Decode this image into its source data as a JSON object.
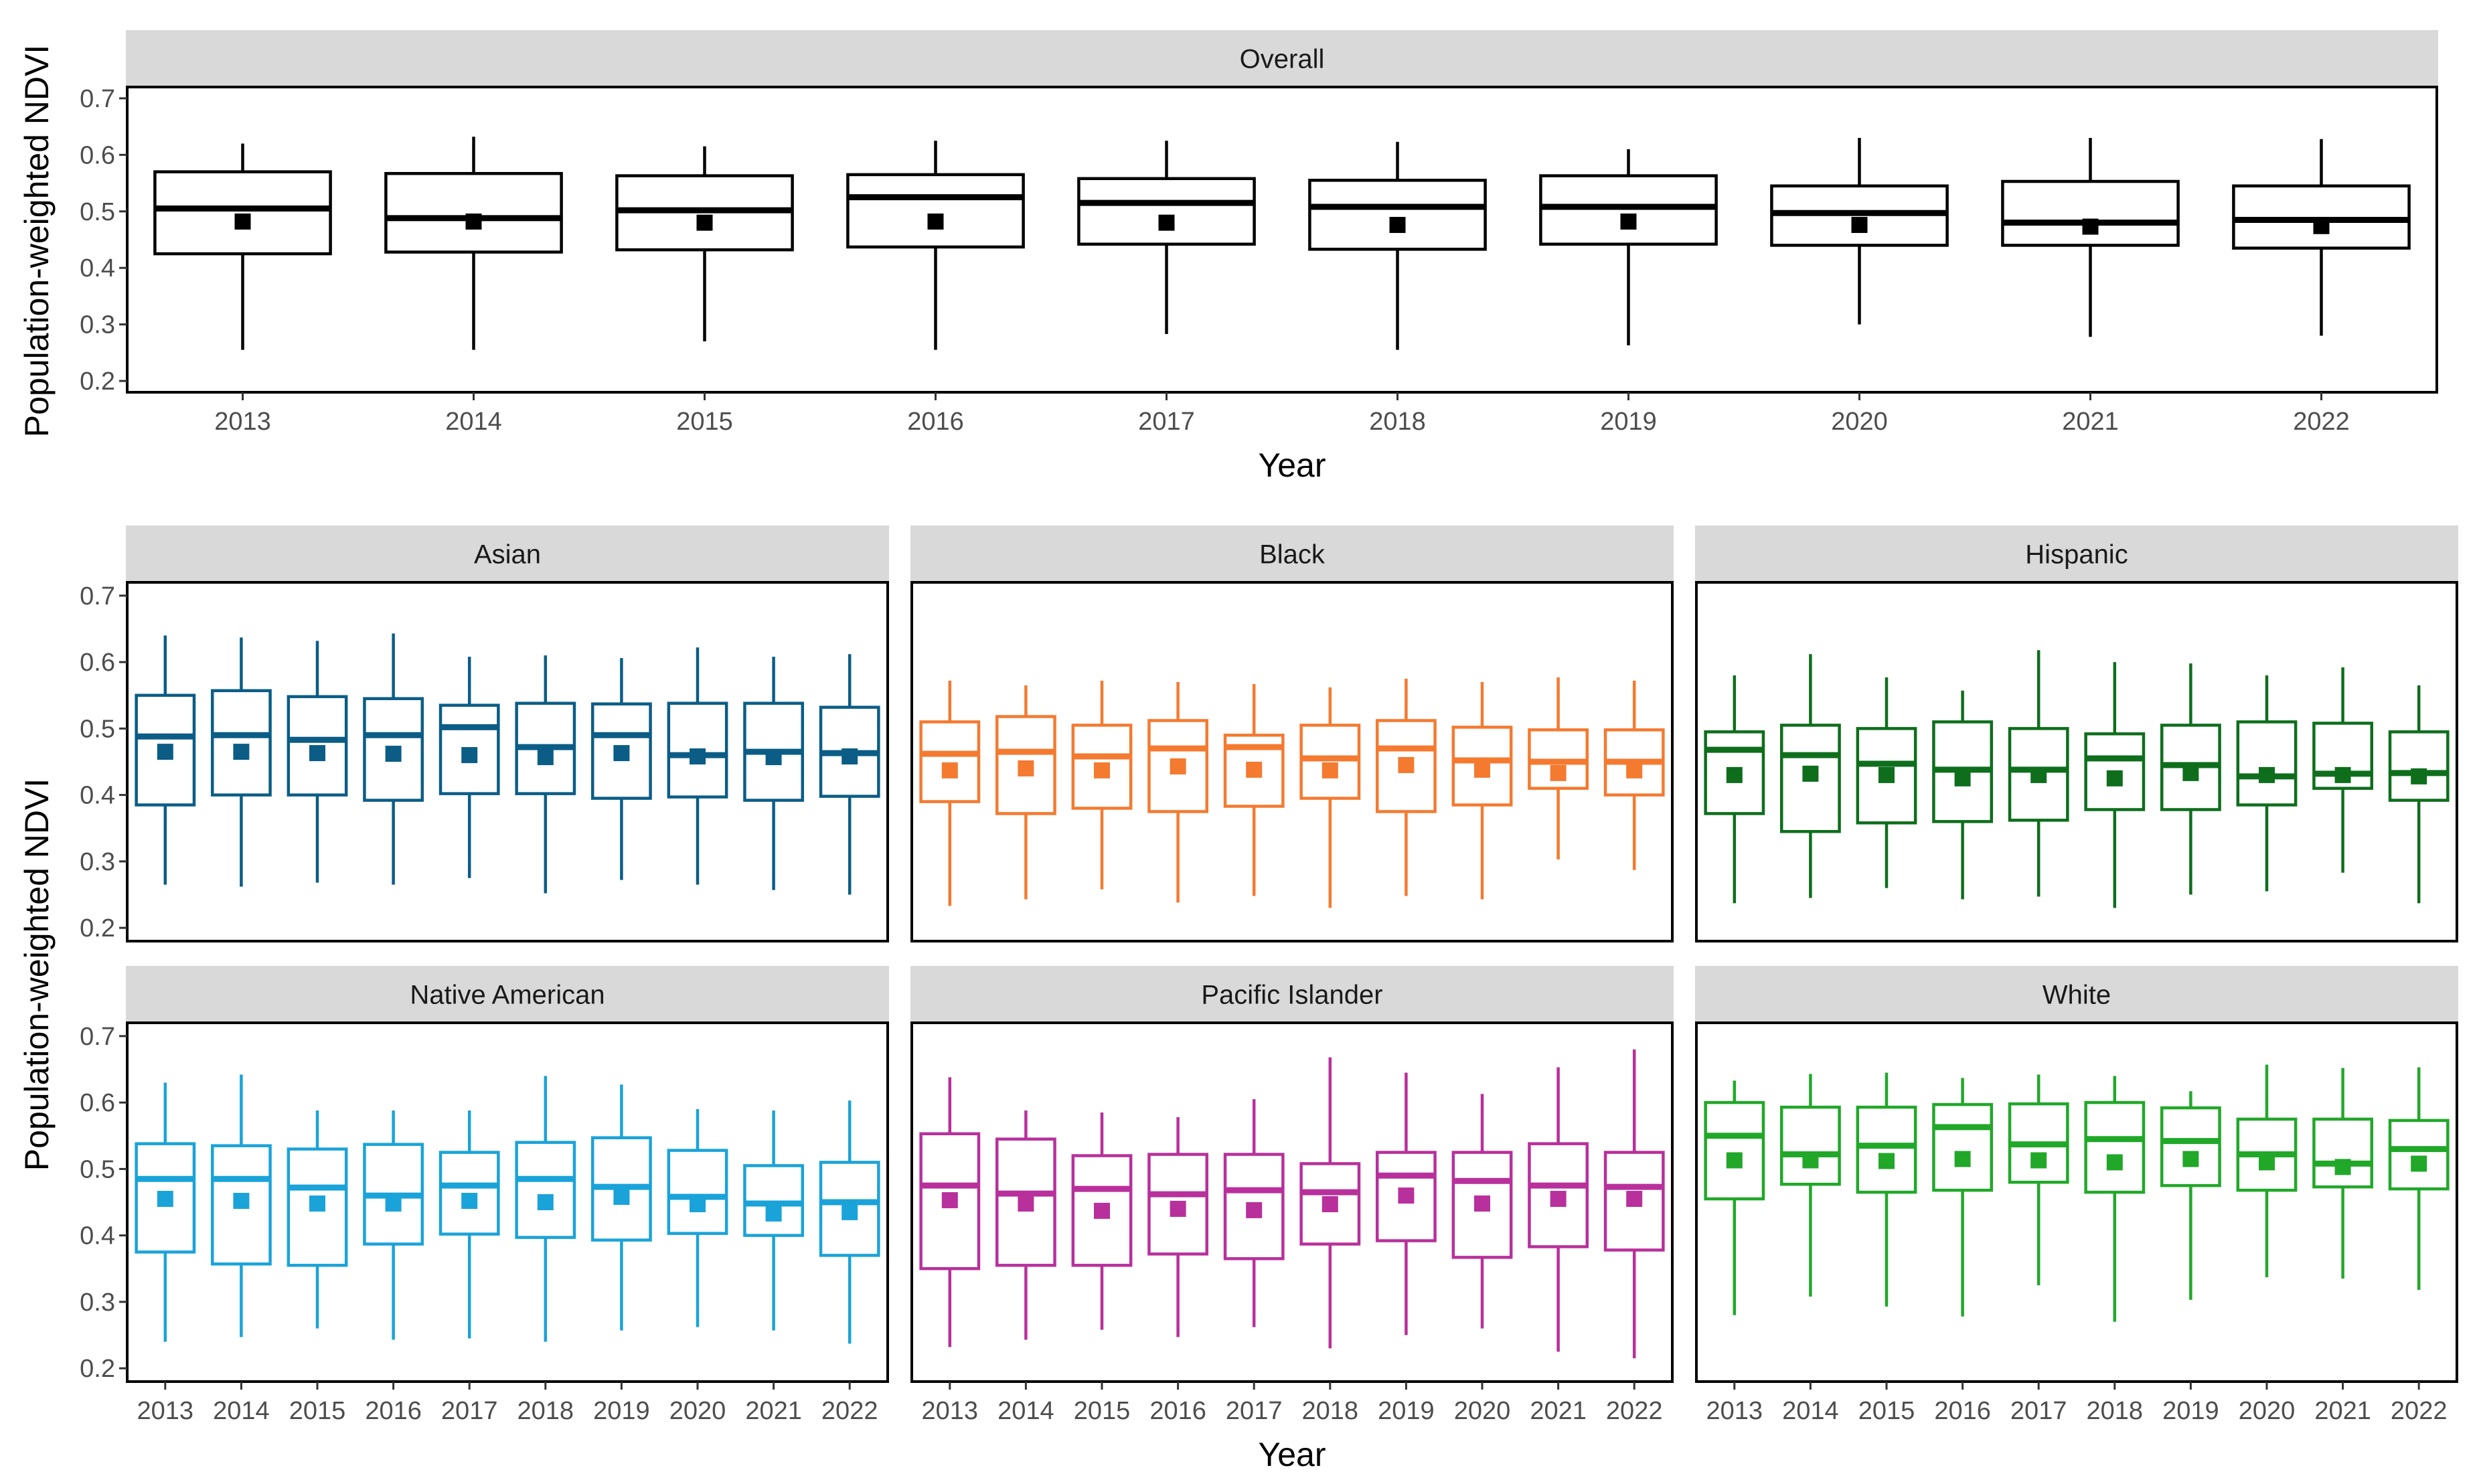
{
  "chart_data": [
    {
      "panel": "Overall",
      "type": "boxplot",
      "color": "#000000",
      "xlabel": "Year",
      "ylabel": "Population-weighted NDVI",
      "ylim": [
        0.18,
        0.72
      ],
      "yticks": [
        0.2,
        0.3,
        0.4,
        0.5,
        0.6,
        0.7
      ],
      "categories": [
        "2013",
        "2014",
        "2015",
        "2016",
        "2017",
        "2018",
        "2019",
        "2020",
        "2021",
        "2022"
      ],
      "boxes": [
        {
          "min": 0.255,
          "q1": 0.425,
          "median": 0.505,
          "q3": 0.57,
          "max": 0.62,
          "mean": 0.482
        },
        {
          "min": 0.255,
          "q1": 0.428,
          "median": 0.488,
          "q3": 0.567,
          "max": 0.632,
          "mean": 0.482
        },
        {
          "min": 0.27,
          "q1": 0.432,
          "median": 0.502,
          "q3": 0.563,
          "max": 0.615,
          "mean": 0.48
        },
        {
          "min": 0.255,
          "q1": 0.437,
          "median": 0.525,
          "q3": 0.565,
          "max": 0.625,
          "mean": 0.482
        },
        {
          "min": 0.283,
          "q1": 0.442,
          "median": 0.515,
          "q3": 0.558,
          "max": 0.625,
          "mean": 0.48
        },
        {
          "min": 0.255,
          "q1": 0.433,
          "median": 0.508,
          "q3": 0.555,
          "max": 0.623,
          "mean": 0.476
        },
        {
          "min": 0.263,
          "q1": 0.442,
          "median": 0.508,
          "q3": 0.563,
          "max": 0.61,
          "mean": 0.482
        },
        {
          "min": 0.3,
          "q1": 0.44,
          "median": 0.497,
          "q3": 0.545,
          "max": 0.63,
          "mean": 0.476
        },
        {
          "min": 0.278,
          "q1": 0.44,
          "median": 0.48,
          "q3": 0.553,
          "max": 0.63,
          "mean": 0.473
        },
        {
          "min": 0.28,
          "q1": 0.435,
          "median": 0.485,
          "q3": 0.545,
          "max": 0.628,
          "mean": 0.474
        }
      ]
    },
    {
      "panel": "Asian",
      "type": "boxplot",
      "color": "#0b5d86",
      "ylim": [
        0.18,
        0.72
      ],
      "yticks": [
        0.2,
        0.3,
        0.4,
        0.5,
        0.6,
        0.7
      ],
      "categories": [
        "2013",
        "2014",
        "2015",
        "2016",
        "2017",
        "2018",
        "2019",
        "2020",
        "2021",
        "2022"
      ],
      "boxes": [
        {
          "min": 0.265,
          "q1": 0.385,
          "median": 0.488,
          "q3": 0.55,
          "max": 0.64,
          "mean": 0.465
        },
        {
          "min": 0.262,
          "q1": 0.4,
          "median": 0.49,
          "q3": 0.557,
          "max": 0.637,
          "mean": 0.465
        },
        {
          "min": 0.268,
          "q1": 0.4,
          "median": 0.483,
          "q3": 0.548,
          "max": 0.632,
          "mean": 0.463
        },
        {
          "min": 0.265,
          "q1": 0.392,
          "median": 0.49,
          "q3": 0.545,
          "max": 0.643,
          "mean": 0.462
        },
        {
          "min": 0.275,
          "q1": 0.402,
          "median": 0.502,
          "q3": 0.535,
          "max": 0.608,
          "mean": 0.46
        },
        {
          "min": 0.252,
          "q1": 0.402,
          "median": 0.472,
          "q3": 0.538,
          "max": 0.61,
          "mean": 0.457
        },
        {
          "min": 0.272,
          "q1": 0.395,
          "median": 0.49,
          "q3": 0.537,
          "max": 0.606,
          "mean": 0.463
        },
        {
          "min": 0.265,
          "q1": 0.397,
          "median": 0.46,
          "q3": 0.538,
          "max": 0.622,
          "mean": 0.458
        },
        {
          "min": 0.257,
          "q1": 0.392,
          "median": 0.465,
          "q3": 0.538,
          "max": 0.608,
          "mean": 0.457
        },
        {
          "min": 0.25,
          "q1": 0.398,
          "median": 0.463,
          "q3": 0.532,
          "max": 0.612,
          "mean": 0.458
        }
      ]
    },
    {
      "panel": "Black",
      "type": "boxplot",
      "color": "#f47a30",
      "ylim": [
        0.18,
        0.72
      ],
      "yticks": [
        0.2,
        0.3,
        0.4,
        0.5,
        0.6,
        0.7
      ],
      "categories": [
        "2013",
        "2014",
        "2015",
        "2016",
        "2017",
        "2018",
        "2019",
        "2020",
        "2021",
        "2022"
      ],
      "boxes": [
        {
          "min": 0.233,
          "q1": 0.39,
          "median": 0.462,
          "q3": 0.51,
          "max": 0.572,
          "mean": 0.437
        },
        {
          "min": 0.243,
          "q1": 0.372,
          "median": 0.465,
          "q3": 0.518,
          "max": 0.565,
          "mean": 0.44
        },
        {
          "min": 0.258,
          "q1": 0.38,
          "median": 0.458,
          "q3": 0.505,
          "max": 0.572,
          "mean": 0.437
        },
        {
          "min": 0.238,
          "q1": 0.375,
          "median": 0.47,
          "q3": 0.512,
          "max": 0.57,
          "mean": 0.443
        },
        {
          "min": 0.248,
          "q1": 0.383,
          "median": 0.472,
          "q3": 0.49,
          "max": 0.567,
          "mean": 0.438
        },
        {
          "min": 0.23,
          "q1": 0.395,
          "median": 0.455,
          "q3": 0.505,
          "max": 0.562,
          "mean": 0.437
        },
        {
          "min": 0.248,
          "q1": 0.375,
          "median": 0.47,
          "q3": 0.512,
          "max": 0.575,
          "mean": 0.445
        },
        {
          "min": 0.243,
          "q1": 0.385,
          "median": 0.452,
          "q3": 0.502,
          "max": 0.57,
          "mean": 0.438
        },
        {
          "min": 0.303,
          "q1": 0.41,
          "median": 0.45,
          "q3": 0.498,
          "max": 0.577,
          "mean": 0.433
        },
        {
          "min": 0.287,
          "q1": 0.4,
          "median": 0.45,
          "q3": 0.498,
          "max": 0.572,
          "mean": 0.437
        }
      ]
    },
    {
      "panel": "Hispanic",
      "type": "boxplot",
      "color": "#0e6e1c",
      "ylim": [
        0.18,
        0.72
      ],
      "yticks": [
        0.2,
        0.3,
        0.4,
        0.5,
        0.6,
        0.7
      ],
      "categories": [
        "2013",
        "2014",
        "2015",
        "2016",
        "2017",
        "2018",
        "2019",
        "2020",
        "2021",
        "2022"
      ],
      "boxes": [
        {
          "min": 0.237,
          "q1": 0.372,
          "median": 0.468,
          "q3": 0.495,
          "max": 0.58,
          "mean": 0.43
        },
        {
          "min": 0.245,
          "q1": 0.345,
          "median": 0.46,
          "q3": 0.505,
          "max": 0.612,
          "mean": 0.432
        },
        {
          "min": 0.26,
          "q1": 0.358,
          "median": 0.447,
          "q3": 0.5,
          "max": 0.577,
          "mean": 0.43
        },
        {
          "min": 0.243,
          "q1": 0.36,
          "median": 0.438,
          "q3": 0.51,
          "max": 0.557,
          "mean": 0.425
        },
        {
          "min": 0.247,
          "q1": 0.362,
          "median": 0.438,
          "q3": 0.5,
          "max": 0.618,
          "mean": 0.43
        },
        {
          "min": 0.23,
          "q1": 0.378,
          "median": 0.455,
          "q3": 0.492,
          "max": 0.6,
          "mean": 0.425
        },
        {
          "min": 0.25,
          "q1": 0.378,
          "median": 0.445,
          "q3": 0.505,
          "max": 0.598,
          "mean": 0.433
        },
        {
          "min": 0.255,
          "q1": 0.385,
          "median": 0.428,
          "q3": 0.51,
          "max": 0.58,
          "mean": 0.43
        },
        {
          "min": 0.283,
          "q1": 0.41,
          "median": 0.432,
          "q3": 0.508,
          "max": 0.592,
          "mean": 0.43
        },
        {
          "min": 0.237,
          "q1": 0.392,
          "median": 0.433,
          "q3": 0.495,
          "max": 0.565,
          "mean": 0.428
        }
      ]
    },
    {
      "panel": "Native American",
      "type": "boxplot",
      "color": "#1aa3d9",
      "xlabel": "",
      "ylabel": "Population-weighted NDVI",
      "ylim": [
        0.18,
        0.72
      ],
      "yticks": [
        0.2,
        0.3,
        0.4,
        0.5,
        0.6,
        0.7
      ],
      "categories": [
        "2013",
        "2014",
        "2015",
        "2016",
        "2017",
        "2018",
        "2019",
        "2020",
        "2021",
        "2022"
      ],
      "boxes": [
        {
          "min": 0.24,
          "q1": 0.375,
          "median": 0.485,
          "q3": 0.538,
          "max": 0.63,
          "mean": 0.455
        },
        {
          "min": 0.247,
          "q1": 0.357,
          "median": 0.485,
          "q3": 0.535,
          "max": 0.642,
          "mean": 0.452
        },
        {
          "min": 0.26,
          "q1": 0.355,
          "median": 0.472,
          "q3": 0.53,
          "max": 0.588,
          "mean": 0.448
        },
        {
          "min": 0.243,
          "q1": 0.387,
          "median": 0.46,
          "q3": 0.537,
          "max": 0.588,
          "mean": 0.448
        },
        {
          "min": 0.245,
          "q1": 0.402,
          "median": 0.475,
          "q3": 0.525,
          "max": 0.588,
          "mean": 0.452
        },
        {
          "min": 0.24,
          "q1": 0.397,
          "median": 0.485,
          "q3": 0.54,
          "max": 0.64,
          "mean": 0.45
        },
        {
          "min": 0.257,
          "q1": 0.393,
          "median": 0.473,
          "q3": 0.547,
          "max": 0.627,
          "mean": 0.458
        },
        {
          "min": 0.262,
          "q1": 0.403,
          "median": 0.458,
          "q3": 0.528,
          "max": 0.59,
          "mean": 0.447
        },
        {
          "min": 0.257,
          "q1": 0.4,
          "median": 0.448,
          "q3": 0.505,
          "max": 0.588,
          "mean": 0.433
        },
        {
          "min": 0.237,
          "q1": 0.37,
          "median": 0.45,
          "q3": 0.51,
          "max": 0.603,
          "mean": 0.435
        }
      ]
    },
    {
      "panel": "Pacific Islander",
      "type": "boxplot",
      "color": "#b8309b",
      "ylim": [
        0.18,
        0.72
      ],
      "yticks": [
        0.2,
        0.3,
        0.4,
        0.5,
        0.6,
        0.7
      ],
      "categories": [
        "2013",
        "2014",
        "2015",
        "2016",
        "2017",
        "2018",
        "2019",
        "2020",
        "2021",
        "2022"
      ],
      "boxes": [
        {
          "min": 0.232,
          "q1": 0.35,
          "median": 0.475,
          "q3": 0.553,
          "max": 0.638,
          "mean": 0.453
        },
        {
          "min": 0.243,
          "q1": 0.355,
          "median": 0.463,
          "q3": 0.545,
          "max": 0.588,
          "mean": 0.448
        },
        {
          "min": 0.258,
          "q1": 0.355,
          "median": 0.47,
          "q3": 0.52,
          "max": 0.585,
          "mean": 0.437
        },
        {
          "min": 0.247,
          "q1": 0.372,
          "median": 0.462,
          "q3": 0.522,
          "max": 0.578,
          "mean": 0.44
        },
        {
          "min": 0.262,
          "q1": 0.365,
          "median": 0.468,
          "q3": 0.522,
          "max": 0.605,
          "mean": 0.438
        },
        {
          "min": 0.23,
          "q1": 0.387,
          "median": 0.465,
          "q3": 0.508,
          "max": 0.668,
          "mean": 0.447
        },
        {
          "min": 0.25,
          "q1": 0.392,
          "median": 0.49,
          "q3": 0.525,
          "max": 0.645,
          "mean": 0.46
        },
        {
          "min": 0.26,
          "q1": 0.367,
          "median": 0.482,
          "q3": 0.525,
          "max": 0.613,
          "mean": 0.448
        },
        {
          "min": 0.225,
          "q1": 0.383,
          "median": 0.475,
          "q3": 0.538,
          "max": 0.653,
          "mean": 0.455
        },
        {
          "min": 0.215,
          "q1": 0.378,
          "median": 0.473,
          "q3": 0.525,
          "max": 0.68,
          "mean": 0.455
        }
      ]
    },
    {
      "panel": "White",
      "type": "boxplot",
      "color": "#21a829",
      "ylim": [
        0.18,
        0.72
      ],
      "yticks": [
        0.2,
        0.3,
        0.4,
        0.5,
        0.6,
        0.7
      ],
      "categories": [
        "2013",
        "2014",
        "2015",
        "2016",
        "2017",
        "2018",
        "2019",
        "2020",
        "2021",
        "2022"
      ],
      "boxes": [
        {
          "min": 0.28,
          "q1": 0.455,
          "median": 0.55,
          "q3": 0.6,
          "max": 0.633,
          "mean": 0.513
        },
        {
          "min": 0.308,
          "q1": 0.477,
          "median": 0.522,
          "q3": 0.593,
          "max": 0.643,
          "mean": 0.513
        },
        {
          "min": 0.293,
          "q1": 0.465,
          "median": 0.535,
          "q3": 0.593,
          "max": 0.645,
          "mean": 0.512
        },
        {
          "min": 0.278,
          "q1": 0.468,
          "median": 0.563,
          "q3": 0.597,
          "max": 0.637,
          "mean": 0.515
        },
        {
          "min": 0.325,
          "q1": 0.48,
          "median": 0.537,
          "q3": 0.598,
          "max": 0.642,
          "mean": 0.513
        },
        {
          "min": 0.27,
          "q1": 0.465,
          "median": 0.545,
          "q3": 0.6,
          "max": 0.64,
          "mean": 0.51
        },
        {
          "min": 0.303,
          "q1": 0.475,
          "median": 0.542,
          "q3": 0.592,
          "max": 0.617,
          "mean": 0.515
        },
        {
          "min": 0.337,
          "q1": 0.468,
          "median": 0.522,
          "q3": 0.575,
          "max": 0.657,
          "mean": 0.51
        },
        {
          "min": 0.335,
          "q1": 0.473,
          "median": 0.508,
          "q3": 0.575,
          "max": 0.652,
          "mean": 0.503
        },
        {
          "min": 0.318,
          "q1": 0.47,
          "median": 0.53,
          "q3": 0.573,
          "max": 0.653,
          "mean": 0.508
        }
      ]
    }
  ],
  "bottom_xlabel": "Year"
}
